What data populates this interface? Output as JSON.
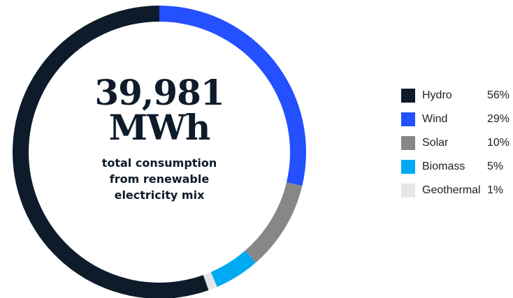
{
  "center": {
    "value": "39,981",
    "unit": "MWh",
    "caption_line1": "total consumption",
    "caption_line2": "from renewable",
    "caption_line3": "electricity mix"
  },
  "chart_data": {
    "type": "pie",
    "variant": "donut",
    "legend_position": "right",
    "categories": [
      "Hydro",
      "Wind",
      "Solar",
      "Biomass",
      "Geothermal"
    ],
    "values": [
      56,
      29,
      10,
      5,
      1
    ],
    "labels": [
      "56%",
      "29%",
      "10%",
      "5%",
      "1%"
    ],
    "colors": [
      "#0d1b2a",
      "#2450ff",
      "#878787",
      "#00aaf2",
      "#e6e6e6"
    ]
  }
}
